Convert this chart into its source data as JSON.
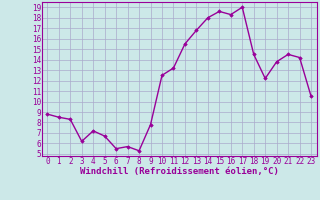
{
  "x": [
    0,
    1,
    2,
    3,
    4,
    5,
    6,
    7,
    8,
    9,
    10,
    11,
    12,
    13,
    14,
    15,
    16,
    17,
    18,
    19,
    20,
    21,
    22,
    23
  ],
  "y": [
    8.8,
    8.5,
    8.3,
    6.2,
    7.2,
    6.7,
    5.5,
    5.7,
    5.3,
    7.8,
    12.5,
    13.2,
    15.5,
    16.8,
    18.0,
    18.6,
    18.3,
    19.0,
    14.5,
    12.2,
    13.8,
    14.5,
    14.2,
    10.5
  ],
  "line_color": "#990099",
  "marker": "D",
  "marker_size": 1.8,
  "xlabel": "Windchill (Refroidissement éolien,°C)",
  "xlabel_fontsize": 6.5,
  "ylabel_ticks": [
    5,
    6,
    7,
    8,
    9,
    10,
    11,
    12,
    13,
    14,
    15,
    16,
    17,
    18,
    19
  ],
  "xlim": [
    -0.5,
    23.5
  ],
  "ylim": [
    4.8,
    19.5
  ],
  "background_color": "#cce8e8",
  "grid_color": "#aaaacc",
  "tick_fontsize": 5.5,
  "line_width": 1.0
}
